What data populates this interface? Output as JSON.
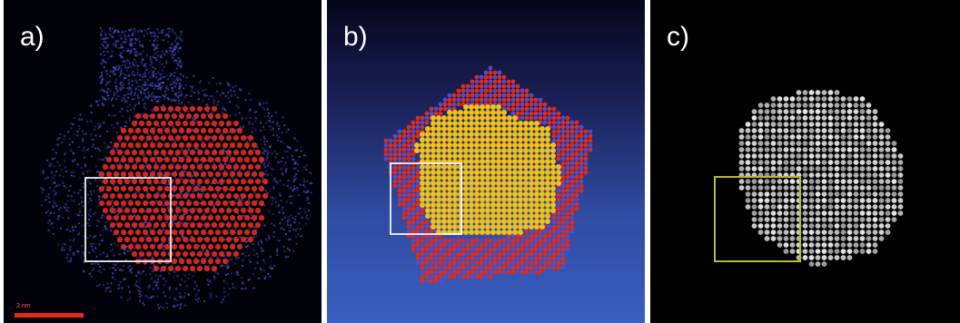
{
  "panels": [
    {
      "label": "a)",
      "scale_bar_text": "2 nm"
    },
    {
      "label": "b)"
    },
    {
      "label": "c)"
    }
  ],
  "colors": {
    "atom_red": "#e02a1f",
    "atom_blue": "#4a4fd0",
    "atom_yellow": "#f2c21a",
    "atom_white": "#e6e6e6",
    "box_white": "#ffffff",
    "box_yellow": "#b8b83a",
    "scale_bar": "#e8261c"
  }
}
